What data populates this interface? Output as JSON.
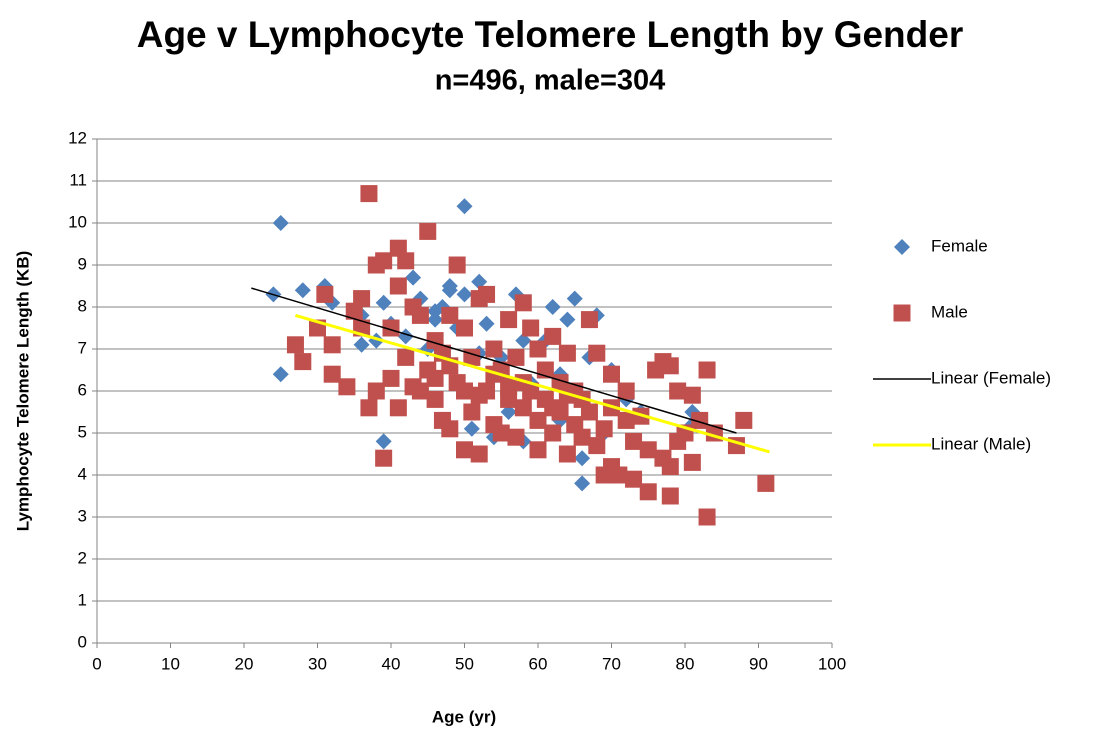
{
  "chart_data": {
    "type": "scatter",
    "title": "Age v Lymphocyte Telomere Length by Gender",
    "subtitle": "n=496, male=304",
    "x_label": "Age (yr)",
    "y_label": "Lymphocyte Telomere Length (KB)",
    "xlim": [
      0,
      100
    ],
    "ylim": [
      0,
      12
    ],
    "xticks": [
      0,
      10,
      20,
      30,
      40,
      50,
      60,
      70,
      80,
      90,
      100
    ],
    "yticks": [
      0,
      1,
      2,
      3,
      4,
      5,
      6,
      7,
      8,
      9,
      10,
      11,
      12
    ],
    "grid": true,
    "legend": "right",
    "series": [
      {
        "name": "Female",
        "color": "#4f81bd",
        "marker": "diamond",
        "x": [
          24,
          25,
          25,
          28,
          31,
          32,
          36,
          36,
          38,
          39,
          39,
          40,
          42,
          43,
          44,
          45,
          46,
          47,
          48,
          48,
          49,
          50,
          50,
          51,
          52,
          53,
          54,
          55,
          56,
          57,
          58,
          59,
          60,
          61,
          62,
          63,
          64,
          65,
          66,
          66,
          67,
          68,
          69,
          70,
          72,
          74,
          81,
          81,
          46,
          52,
          58,
          63
        ],
        "values": [
          8.3,
          10.0,
          6.4,
          8.4,
          8.5,
          8.1,
          7.8,
          7.1,
          7.2,
          8.1,
          4.8,
          7.6,
          7.3,
          8.7,
          8.2,
          7.0,
          7.7,
          8.0,
          8.4,
          8.5,
          7.5,
          10.4,
          8.3,
          5.1,
          8.6,
          7.6,
          4.9,
          6.8,
          5.5,
          8.3,
          4.8,
          6.2,
          7.0,
          7.2,
          8.0,
          6.4,
          7.7,
          8.2,
          4.4,
          3.8,
          6.8,
          7.8,
          5.0,
          6.5,
          5.8,
          5.5,
          5.5,
          5.2,
          7.9,
          6.9,
          7.2,
          5.3
        ]
      },
      {
        "name": "Male",
        "color": "#c0504d",
        "marker": "square",
        "x": [
          27,
          28,
          30,
          31,
          32,
          32,
          34,
          35,
          36,
          36,
          37,
          37,
          38,
          38,
          39,
          39,
          40,
          40,
          41,
          41,
          41,
          42,
          42,
          43,
          43,
          44,
          45,
          45,
          46,
          46,
          47,
          47,
          48,
          48,
          49,
          49,
          50,
          50,
          51,
          51,
          52,
          52,
          53,
          53,
          54,
          54,
          55,
          55,
          56,
          56,
          57,
          57,
          58,
          58,
          59,
          59,
          60,
          60,
          61,
          61,
          62,
          62,
          63,
          63,
          64,
          64,
          65,
          65,
          66,
          66,
          67,
          67,
          68,
          68,
          69,
          69,
          70,
          70,
          71,
          72,
          72,
          73,
          73,
          74,
          75,
          75,
          76,
          77,
          77,
          78,
          78,
          78,
          79,
          79,
          80,
          81,
          81,
          82,
          83,
          83,
          84,
          87,
          88,
          91,
          44,
          46,
          48,
          50,
          52,
          54,
          56,
          58,
          60,
          62,
          64,
          70
        ],
        "values": [
          7.1,
          6.7,
          7.5,
          8.3,
          7.1,
          6.4,
          6.1,
          7.9,
          8.2,
          7.5,
          10.7,
          5.6,
          9.0,
          6.0,
          9.1,
          4.4,
          7.5,
          6.3,
          9.4,
          8.5,
          5.6,
          9.1,
          6.8,
          8.0,
          6.1,
          7.8,
          9.8,
          6.5,
          7.2,
          5.8,
          5.3,
          6.9,
          7.8,
          5.1,
          9.0,
          6.2,
          4.6,
          7.5,
          6.8,
          5.5,
          4.5,
          8.2,
          6.0,
          8.3,
          7.0,
          5.2,
          6.5,
          5.0,
          7.7,
          6.1,
          4.9,
          6.8,
          8.1,
          5.6,
          7.5,
          6.0,
          4.6,
          7.0,
          5.8,
          6.5,
          5.0,
          7.3,
          6.2,
          5.5,
          4.5,
          6.9,
          5.2,
          6.0,
          5.8,
          4.9,
          7.7,
          5.5,
          6.9,
          4.7,
          5.1,
          4.0,
          4.2,
          6.4,
          4.0,
          5.3,
          6.0,
          3.9,
          4.8,
          5.4,
          3.6,
          4.6,
          6.5,
          6.7,
          4.4,
          3.5,
          4.2,
          6.6,
          4.8,
          6.0,
          5.0,
          4.3,
          5.9,
          5.3,
          3.0,
          6.5,
          5.0,
          4.7,
          5.3,
          3.8,
          6.0,
          6.3,
          6.6,
          6.0,
          5.9,
          6.4,
          5.8,
          6.2,
          5.3,
          5.6,
          5.9,
          5.6
        ]
      },
      {
        "name": "Linear (Female)",
        "color": "#000000",
        "marker": "line",
        "x": [
          21,
          87
        ],
        "values": [
          8.45,
          5.0
        ]
      },
      {
        "name": "Linear (Male)",
        "color": "#ffff00",
        "marker": "line",
        "x": [
          27,
          91.5
        ],
        "values": [
          7.8,
          4.55
        ]
      }
    ]
  }
}
